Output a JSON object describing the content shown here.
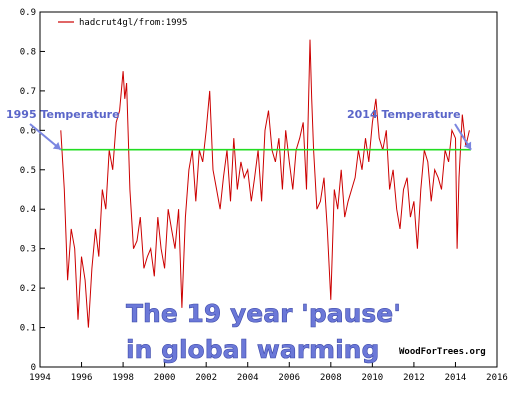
{
  "chart_data": {
    "type": "line",
    "legend": "hadcrut4gl/from:1995",
    "xlim": [
      1994,
      2016
    ],
    "ylim": [
      0,
      0.9
    ],
    "x_ticks": [
      "1994",
      "1996",
      "1998",
      "2000",
      "2002",
      "2004",
      "2006",
      "2008",
      "2010",
      "2012",
      "2014",
      "2016"
    ],
    "y_ticks": [
      "0",
      "0.1",
      "0.2",
      "0.3",
      "0.4",
      "0.5",
      "0.6",
      "0.7",
      "0.8",
      "0.9"
    ],
    "grid": false,
    "series": [
      {
        "name": "hadcrut4gl/from:1995",
        "color": "#cc0000",
        "x": [
          1995.0,
          1995.17,
          1995.33,
          1995.5,
          1995.67,
          1995.83,
          1996.0,
          1996.17,
          1996.33,
          1996.5,
          1996.67,
          1996.83,
          1997.0,
          1997.17,
          1997.33,
          1997.5,
          1997.67,
          1997.83,
          1998.0,
          1998.08,
          1998.17,
          1998.33,
          1998.5,
          1998.67,
          1998.83,
          1999.0,
          1999.17,
          1999.33,
          1999.5,
          1999.67,
          1999.83,
          2000.0,
          2000.17,
          2000.33,
          2000.5,
          2000.67,
          2000.83,
          2001.0,
          2001.17,
          2001.33,
          2001.5,
          2001.67,
          2001.83,
          2002.0,
          2002.17,
          2002.33,
          2002.5,
          2002.67,
          2002.83,
          2003.0,
          2003.17,
          2003.33,
          2003.5,
          2003.67,
          2003.83,
          2004.0,
          2004.17,
          2004.33,
          2004.5,
          2004.67,
          2004.83,
          2005.0,
          2005.17,
          2005.33,
          2005.5,
          2005.67,
          2005.83,
          2006.0,
          2006.17,
          2006.33,
          2006.5,
          2006.67,
          2006.83,
          2007.0,
          2007.08,
          2007.17,
          2007.33,
          2007.5,
          2007.67,
          2007.83,
          2008.0,
          2008.17,
          2008.33,
          2008.5,
          2008.67,
          2008.83,
          2009.0,
          2009.17,
          2009.33,
          2009.5,
          2009.67,
          2009.83,
          2010.0,
          2010.17,
          2010.33,
          2010.5,
          2010.67,
          2010.83,
          2011.0,
          2011.17,
          2011.33,
          2011.5,
          2011.67,
          2011.83,
          2012.0,
          2012.17,
          2012.33,
          2012.5,
          2012.67,
          2012.83,
          2013.0,
          2013.17,
          2013.33,
          2013.5,
          2013.67,
          2013.83,
          2014.0,
          2014.08,
          2014.17,
          2014.33,
          2014.5,
          2014.67
        ],
        "y": [
          0.6,
          0.45,
          0.22,
          0.35,
          0.3,
          0.12,
          0.28,
          0.22,
          0.1,
          0.25,
          0.35,
          0.28,
          0.45,
          0.4,
          0.55,
          0.5,
          0.62,
          0.65,
          0.75,
          0.68,
          0.72,
          0.45,
          0.3,
          0.32,
          0.38,
          0.25,
          0.28,
          0.3,
          0.23,
          0.38,
          0.3,
          0.25,
          0.4,
          0.35,
          0.3,
          0.4,
          0.15,
          0.38,
          0.5,
          0.55,
          0.42,
          0.55,
          0.52,
          0.6,
          0.7,
          0.5,
          0.45,
          0.4,
          0.48,
          0.55,
          0.42,
          0.58,
          0.45,
          0.52,
          0.48,
          0.5,
          0.42,
          0.48,
          0.55,
          0.42,
          0.6,
          0.65,
          0.55,
          0.52,
          0.58,
          0.45,
          0.6,
          0.52,
          0.45,
          0.55,
          0.58,
          0.62,
          0.45,
          0.83,
          0.68,
          0.55,
          0.4,
          0.42,
          0.48,
          0.35,
          0.17,
          0.45,
          0.4,
          0.5,
          0.38,
          0.42,
          0.45,
          0.48,
          0.55,
          0.5,
          0.58,
          0.52,
          0.62,
          0.68,
          0.58,
          0.55,
          0.6,
          0.45,
          0.5,
          0.4,
          0.35,
          0.45,
          0.48,
          0.38,
          0.42,
          0.3,
          0.45,
          0.55,
          0.52,
          0.42,
          0.5,
          0.48,
          0.45,
          0.55,
          0.52,
          0.6,
          0.58,
          0.3,
          0.48,
          0.64,
          0.56,
          0.6
        ]
      },
      {
        "name": "",
        "color": "#22dd22",
        "x": [
          1995.0,
          2014.75
        ],
        "y": [
          0.551,
          0.551
        ]
      }
    ],
    "annotations": [
      {
        "text": "1995 Temperature",
        "x": 1995.0,
        "y": 0.551
      },
      {
        "text": "2014 Temperature",
        "x": 2014.75,
        "y": 0.551
      }
    ],
    "caption_lines": [
      "The 19 year 'pause'",
      "in global warming"
    ],
    "credit": "WoodForTrees.org"
  }
}
